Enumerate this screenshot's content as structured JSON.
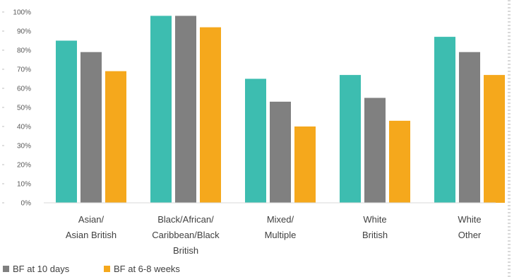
{
  "chart_data": {
    "type": "bar",
    "categories": [
      [
        "Asian/",
        "Asian British"
      ],
      [
        "Black/African/",
        "Caribbean/Black",
        "British"
      ],
      [
        "Mixed/",
        "Multiple"
      ],
      [
        "White",
        "British"
      ],
      [
        "White",
        "Other"
      ]
    ],
    "series": [
      {
        "values": [
          85,
          98,
          65,
          67,
          87
        ],
        "color": "#3dbdb0"
      },
      {
        "name": "BF at 10 days",
        "values": [
          79,
          98,
          53,
          55,
          79
        ],
        "color": "#808080"
      },
      {
        "name": "BF at 6-8 weeks",
        "values": [
          69,
          92,
          40,
          43,
          67
        ],
        "color": "#f5a81c"
      }
    ],
    "yticks": [
      "0%",
      "10%",
      "20%",
      "30%",
      "40%",
      "50%",
      "60%",
      "70%",
      "80%",
      "90%",
      "100%"
    ],
    "ylim": [
      0,
      100
    ],
    "grid": false,
    "legend": "bottom-left"
  },
  "legend": {
    "items": [
      {
        "label": "BF at 10 days",
        "color": "#808080"
      },
      {
        "label": "BF at 6-8 weeks",
        "color": "#f5a81c"
      }
    ]
  }
}
